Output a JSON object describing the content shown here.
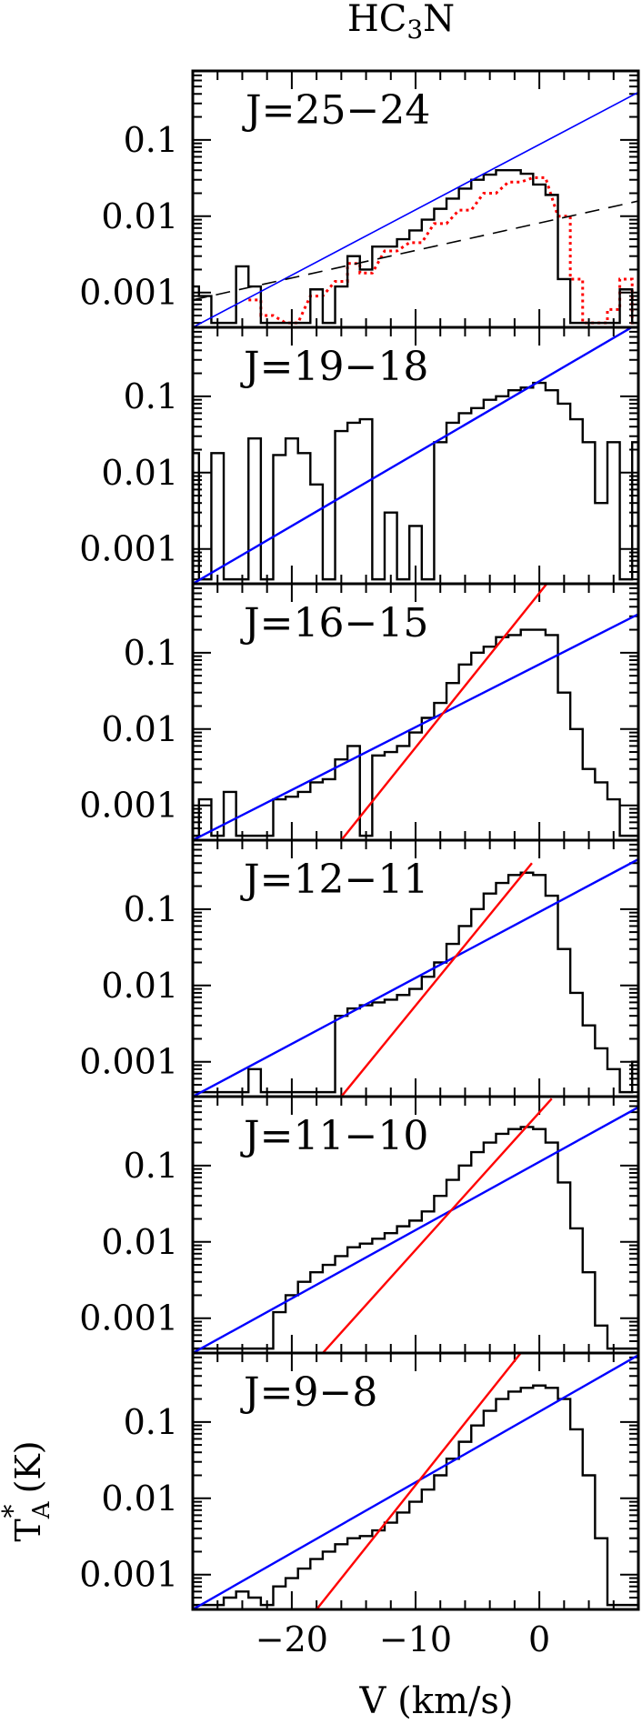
{
  "title": {
    "molecule_base": "HC",
    "subscript": "3",
    "suffix": "N"
  },
  "ylabel": {
    "base": "T",
    "superscript": "*",
    "subscript": "A",
    "unit": " (K)"
  },
  "xlabel": "V (km/s)",
  "colors": {
    "spectrum": "#000000",
    "fit_blue": "#0000ff",
    "fit_red": "#ff0000",
    "alt_red": "#ff0000",
    "dashed": "#000000"
  },
  "chart_data": {
    "type": "line",
    "xlim": [
      -28,
      8
    ],
    "xscale": "linear",
    "x_ticks": [
      -20,
      -10,
      0
    ],
    "x_tick_labels": [
      "−20",
      "−10",
      "0"
    ],
    "yscale": "log",
    "ylim": [
      0.00035,
      0.8
    ],
    "y_ticks": [
      0.1,
      0.01,
      0.001
    ],
    "y_tick_labels": [
      "0.1",
      "0.01",
      "0.001"
    ],
    "panels": [
      {
        "label": "J=25−24",
        "spectrum": {
          "x": [
            -28,
            -27,
            -26,
            -25,
            -24,
            -23,
            -22,
            -21,
            -20,
            -19,
            -18,
            -17,
            -16,
            -15,
            -14,
            -13,
            -12,
            -11,
            -10,
            -9,
            -8,
            -7,
            -6,
            -5,
            -4,
            -3,
            -2,
            -1,
            0,
            1,
            2,
            3,
            4,
            5,
            6,
            7,
            8
          ],
          "y": [
            0.0012,
            0.0009,
            0.0004,
            0.0004,
            0.0022,
            0.0012,
            0.0004,
            0.0004,
            0.0004,
            0.0004,
            0.0011,
            0.0004,
            0.0012,
            0.003,
            0.002,
            0.004,
            0.004,
            0.005,
            0.0065,
            0.009,
            0.0125,
            0.017,
            0.023,
            0.03,
            0.035,
            0.04,
            0.04,
            0.036,
            0.026,
            0.019,
            0.0015,
            0.0004,
            0.0004,
            0.0004,
            0.0004,
            0.0011,
            0.0004
          ]
        },
        "alt_spectrum": {
          "x": [
            -23,
            -22,
            -20,
            -18,
            -16,
            -15,
            -14,
            -12,
            -10,
            -8,
            -6,
            -4,
            -2,
            0,
            2,
            3,
            4,
            5,
            6,
            7,
            8
          ],
          "y": [
            0.0008,
            0.0005,
            0.0004,
            0.0009,
            0.0014,
            0.0024,
            0.0018,
            0.0035,
            0.0045,
            0.008,
            0.012,
            0.02,
            0.028,
            0.032,
            0.01,
            0.0015,
            0.0004,
            0.0004,
            0.0006,
            0.0015,
            0.0004
          ]
        },
        "fits": [
          {
            "style": "solid",
            "color": "blue",
            "x": [
              -28,
              8
            ],
            "y": [
              5e-05,
              0.42
            ]
          },
          {
            "style": "dashed",
            "color": "black",
            "x": [
              -28,
              8
            ],
            "y": [
              0.0008,
              0.0158
            ]
          }
        ]
      },
      {
        "label": "J=19−18",
        "spectrum": {
          "x": [
            -28,
            -27,
            -26,
            -25,
            -24,
            -23,
            -22,
            -21,
            -20,
            -19,
            -18,
            -17,
            -16,
            -15,
            -14,
            -13,
            -12,
            -11,
            -10,
            -9,
            -8,
            -7,
            -6,
            -5,
            -4,
            -3,
            -2,
            -1,
            0,
            1,
            2,
            3,
            4,
            5,
            6,
            7,
            8
          ],
          "y": [
            0.018,
            0.0004,
            0.018,
            0.0004,
            0.0004,
            0.028,
            0.0004,
            0.017,
            0.028,
            0.018,
            0.007,
            0.0004,
            0.035,
            0.045,
            0.05,
            0.0004,
            0.003,
            0.0004,
            0.002,
            0.0004,
            0.025,
            0.045,
            0.06,
            0.07,
            0.09,
            0.1,
            0.12,
            0.13,
            0.15,
            0.12,
            0.08,
            0.05,
            0.025,
            0.004,
            0.025,
            0.0004,
            0.025
          ]
        },
        "fits": [
          {
            "style": "solid",
            "color": "blue",
            "x": [
              -28,
              8
            ],
            "y": [
              0.00035,
              0.9
            ]
          }
        ]
      },
      {
        "label": "J=16−15",
        "spectrum": {
          "x": [
            -28,
            -27,
            -26,
            -25,
            -24,
            -23,
            -22,
            -21,
            -20,
            -19,
            -18,
            -17,
            -16,
            -15,
            -14,
            -13,
            -12,
            -11,
            -10,
            -9,
            -8,
            -7,
            -6,
            -5,
            -4,
            -3,
            -2,
            -1,
            0,
            1,
            2,
            3,
            4,
            5,
            6,
            7,
            8
          ],
          "y": [
            0.0004,
            0.0012,
            0.0004,
            0.0015,
            0.0004,
            0.0004,
            0.0004,
            0.0012,
            0.0013,
            0.0015,
            0.002,
            0.0022,
            0.004,
            0.006,
            0.0004,
            0.0045,
            0.005,
            0.006,
            0.009,
            0.014,
            0.022,
            0.04,
            0.07,
            0.1,
            0.12,
            0.16,
            0.17,
            0.2,
            0.2,
            0.17,
            0.03,
            0.01,
            0.003,
            0.002,
            0.0012,
            0.0004,
            0.0004
          ]
        },
        "fits": [
          {
            "style": "solid",
            "color": "blue",
            "x": [
              -28,
              8
            ],
            "y": [
              0.00012,
              0.32
            ]
          },
          {
            "style": "solid",
            "color": "red",
            "x": [
              -16,
              0.6
            ],
            "y": [
              0.00035,
              0.8
            ]
          }
        ]
      },
      {
        "label": "J=12−11",
        "spectrum": {
          "x": [
            -28,
            -27,
            -26,
            -25,
            -24,
            -23,
            -22,
            -21,
            -20,
            -19,
            -18,
            -17,
            -16,
            -15,
            -14,
            -13,
            -12,
            -11,
            -10,
            -9,
            -8,
            -7,
            -6,
            -5,
            -4,
            -3,
            -2,
            -1,
            0,
            1,
            2,
            3,
            4,
            5,
            6,
            7,
            8
          ],
          "y": [
            0.0004,
            0.0004,
            0.0004,
            0.0004,
            0.0004,
            0.0008,
            0.0004,
            0.0004,
            0.0004,
            0.0004,
            0.0004,
            0.0004,
            0.004,
            0.005,
            0.0055,
            0.006,
            0.0065,
            0.0075,
            0.009,
            0.013,
            0.02,
            0.035,
            0.06,
            0.1,
            0.16,
            0.22,
            0.28,
            0.3,
            0.28,
            0.15,
            0.03,
            0.008,
            0.003,
            0.0015,
            0.0008,
            0.0004,
            0.001
          ]
        },
        "fits": [
          {
            "style": "solid",
            "color": "blue",
            "x": [
              -28,
              8
            ],
            "y": [
              0.00012,
              0.45
            ]
          },
          {
            "style": "solid",
            "color": "red",
            "x": [
              -16,
              -0.6
            ],
            "y": [
              0.00035,
              0.4
            ]
          }
        ]
      },
      {
        "label": "J=11−10",
        "spectrum": {
          "x": [
            -28,
            -27,
            -26,
            -25,
            -24,
            -23,
            -22,
            -21,
            -20,
            -19,
            -18,
            -17,
            -16,
            -15,
            -14,
            -13,
            -12,
            -11,
            -10,
            -9,
            -8,
            -7,
            -6,
            -5,
            -4,
            -3,
            -2,
            -1,
            0,
            1,
            2,
            3,
            4,
            5,
            6,
            7,
            8
          ],
          "y": [
            0.0004,
            0.0004,
            0.0004,
            0.0004,
            0.0004,
            0.0004,
            0.0004,
            0.0012,
            0.002,
            0.003,
            0.004,
            0.005,
            0.0065,
            0.0085,
            0.0095,
            0.011,
            0.013,
            0.016,
            0.019,
            0.025,
            0.04,
            0.065,
            0.1,
            0.15,
            0.2,
            0.26,
            0.3,
            0.32,
            0.3,
            0.2,
            0.06,
            0.015,
            0.004,
            0.0008,
            0.0004,
            0.0004,
            0.0004
          ]
        },
        "fits": [
          {
            "style": "solid",
            "color": "blue",
            "x": [
              -28,
              8
            ],
            "y": [
              0.00025,
              0.58
            ]
          },
          {
            "style": "solid",
            "color": "red",
            "x": [
              -17.5,
              1
            ],
            "y": [
              0.00035,
              0.75
            ]
          }
        ]
      },
      {
        "label": "J=9−8",
        "spectrum": {
          "x": [
            -28,
            -27,
            -26,
            -25,
            -24,
            -23,
            -22,
            -21,
            -20,
            -19,
            -18,
            -17,
            -16,
            -15,
            -14,
            -13,
            -12,
            -11,
            -10,
            -9,
            -8,
            -7,
            -6,
            -5,
            -4,
            -3,
            -2,
            -1,
            0,
            1,
            2,
            3,
            4,
            5,
            6,
            7,
            8
          ],
          "y": [
            0.0004,
            0.0004,
            0.0004,
            0.0005,
            0.0006,
            0.0005,
            0.0004,
            0.0007,
            0.0009,
            0.0012,
            0.0016,
            0.002,
            0.0025,
            0.003,
            0.0032,
            0.0038,
            0.0048,
            0.0065,
            0.009,
            0.013,
            0.02,
            0.033,
            0.055,
            0.09,
            0.14,
            0.2,
            0.25,
            0.28,
            0.3,
            0.28,
            0.2,
            0.08,
            0.02,
            0.003,
            0.0004,
            0.0004,
            0.0004
          ]
        },
        "fits": [
          {
            "style": "solid",
            "color": "blue",
            "x": [
              -28,
              8
            ],
            "y": [
              0.00012,
              0.75
            ]
          },
          {
            "style": "solid",
            "color": "red",
            "x": [
              -18,
              -1.5
            ],
            "y": [
              0.00035,
              0.8
            ]
          }
        ]
      }
    ]
  }
}
